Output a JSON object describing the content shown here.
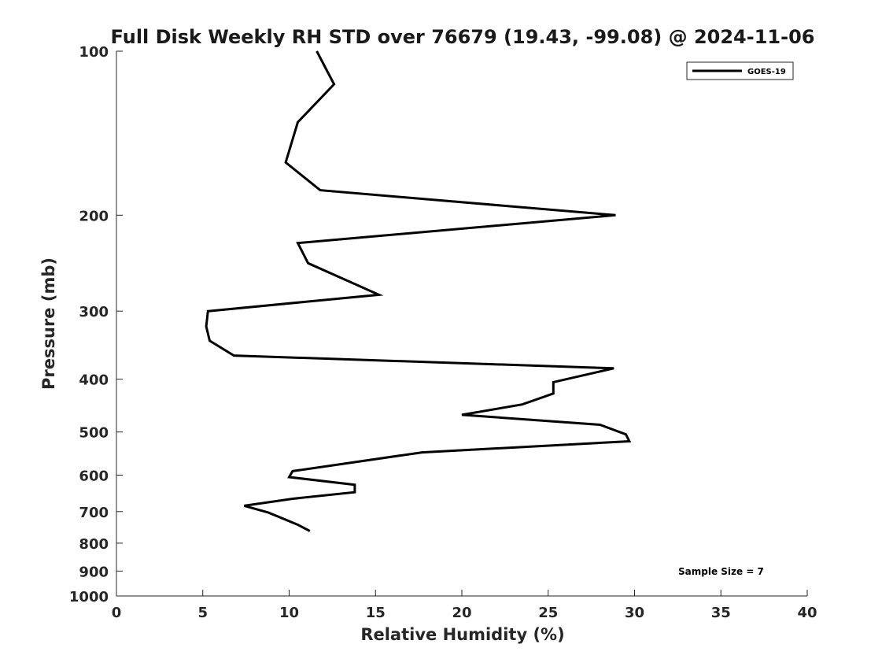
{
  "chart_data": {
    "type": "line",
    "title": "Full Disk Weekly RH STD over 76679 (19.43, -99.08) @ 2024-11-06",
    "xlabel": "Relative Humidity (%)",
    "ylabel": "Pressure (mb)",
    "xlim": [
      0,
      40
    ],
    "ylim": [
      100,
      1000
    ],
    "y_scale": "log",
    "y_inverted": true,
    "grid": false,
    "legend_position": "top-right",
    "x_ticks": [
      "0",
      "5",
      "10",
      "15",
      "20",
      "25",
      "30",
      "35",
      "40"
    ],
    "y_ticks": [
      "100",
      "200",
      "300",
      "400",
      "500",
      "600",
      "700",
      "800",
      "900",
      "1000"
    ],
    "series": [
      {
        "name": "GOES-19",
        "color": "#000000",
        "points": [
          {
            "x": 11.6,
            "y": 100
          },
          {
            "x": 12.6,
            "y": 115
          },
          {
            "x": 10.5,
            "y": 135
          },
          {
            "x": 9.8,
            "y": 160
          },
          {
            "x": 11.8,
            "y": 180
          },
          {
            "x": 28.9,
            "y": 200
          },
          {
            "x": 10.5,
            "y": 225
          },
          {
            "x": 11.1,
            "y": 245
          },
          {
            "x": 15.2,
            "y": 280
          },
          {
            "x": 5.3,
            "y": 300
          },
          {
            "x": 5.2,
            "y": 320
          },
          {
            "x": 5.4,
            "y": 340
          },
          {
            "x": 6.8,
            "y": 362
          },
          {
            "x": 28.8,
            "y": 382
          },
          {
            "x": 25.3,
            "y": 405
          },
          {
            "x": 25.3,
            "y": 425
          },
          {
            "x": 23.5,
            "y": 445
          },
          {
            "x": 20.0,
            "y": 465
          },
          {
            "x": 28.0,
            "y": 485
          },
          {
            "x": 29.5,
            "y": 505
          },
          {
            "x": 29.7,
            "y": 520
          },
          {
            "x": 17.7,
            "y": 545
          },
          {
            "x": 10.2,
            "y": 590
          },
          {
            "x": 10.0,
            "y": 605
          },
          {
            "x": 13.8,
            "y": 625
          },
          {
            "x": 13.8,
            "y": 645
          },
          {
            "x": 10.2,
            "y": 663
          },
          {
            "x": 7.4,
            "y": 683
          },
          {
            "x": 8.8,
            "y": 703
          },
          {
            "x": 10.5,
            "y": 740
          },
          {
            "x": 11.2,
            "y": 760
          }
        ]
      }
    ],
    "annotations": [
      {
        "text": "Sample Size = 7",
        "position": "bottom-right"
      }
    ]
  }
}
